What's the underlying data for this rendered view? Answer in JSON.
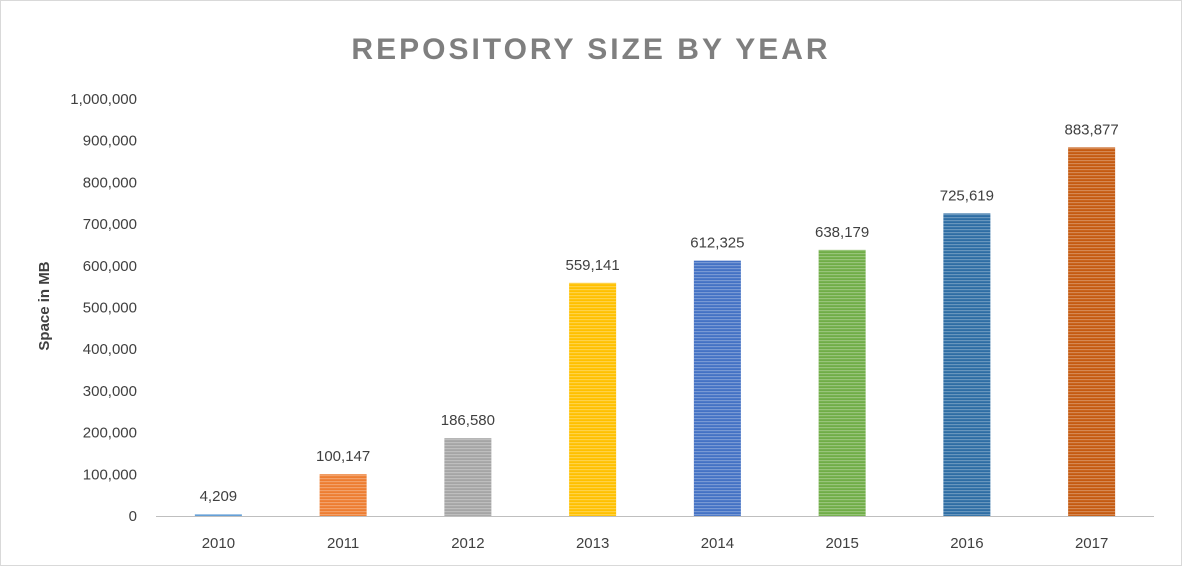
{
  "chart_data": {
    "type": "bar",
    "title": "REPOSITORY SIZE BY YEAR",
    "xlabel": "",
    "ylabel": "Space in MB",
    "categories": [
      "2010",
      "2011",
      "2012",
      "2013",
      "2014",
      "2015",
      "2016",
      "2017"
    ],
    "values": [
      4209,
      100147,
      186580,
      559141,
      612325,
      638179,
      725619,
      883877
    ],
    "value_labels": [
      "4,209",
      "100,147",
      "186,580",
      "559,141",
      "612,325",
      "638,179",
      "725,619",
      "883,877"
    ],
    "bar_colors": [
      "#5b9bd5",
      "#ed7d31",
      "#a5a5a5",
      "#ffc000",
      "#4472c4",
      "#70ad47",
      "#2e6da4",
      "#c55a11"
    ],
    "ylim": [
      0,
      1000000
    ],
    "yticks": [
      0,
      100000,
      200000,
      300000,
      400000,
      500000,
      600000,
      700000,
      800000,
      900000,
      1000000
    ],
    "ytick_labels": [
      "0",
      "100,000",
      "200,000",
      "300,000",
      "400,000",
      "500,000",
      "600,000",
      "700,000",
      "800,000",
      "900,000",
      "1,000,000"
    ],
    "grid": false,
    "legend": "none"
  }
}
